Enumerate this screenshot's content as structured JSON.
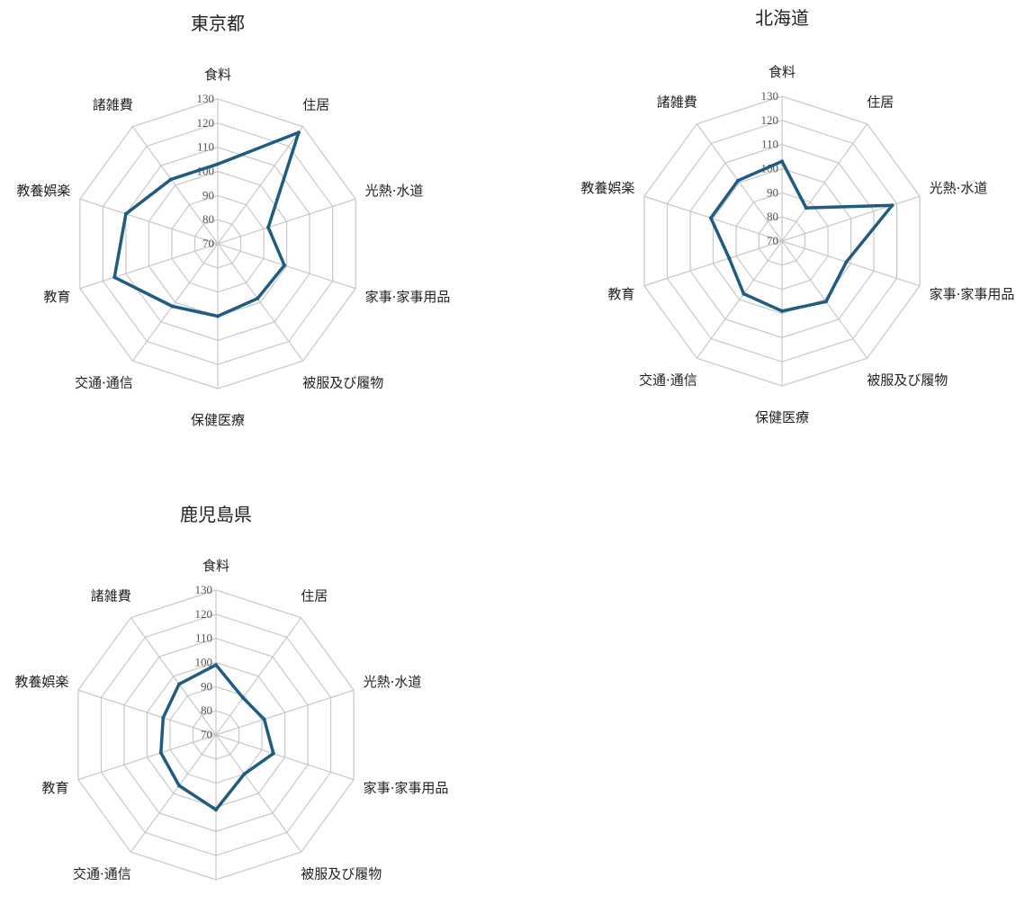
{
  "chart_data": [
    {
      "type": "radar",
      "title": "東京都",
      "categories": [
        "食料",
        "住居",
        "光熱·水道",
        "家事·家事用品",
        "被服及び履物",
        "保健医療",
        "交通·通信",
        "教育",
        "教養娯楽",
        "諸雑費"
      ],
      "values": [
        103,
        127,
        92,
        99,
        98,
        100,
        102,
        115,
        110,
        103
      ],
      "ticks": [
        "70",
        "80",
        "90",
        "100",
        "110",
        "120",
        "130"
      ],
      "rlim": [
        70,
        130
      ],
      "grid": true,
      "color": "#1f5c80"
    },
    {
      "type": "radar",
      "title": "北海道",
      "categories": [
        "食料",
        "住居",
        "光熱·水道",
        "家事·家事用品",
        "被服及び履物",
        "保健医療",
        "交通·通信",
        "教育",
        "教養娯楽",
        "諸雑費"
      ],
      "values": [
        103,
        87,
        118,
        98,
        101,
        99,
        97,
        93,
        101,
        101
      ],
      "ticks": [
        "70",
        "80",
        "90",
        "100",
        "110",
        "120",
        "130"
      ],
      "rlim": [
        70,
        130
      ],
      "grid": true,
      "color": "#1f5c80"
    },
    {
      "type": "radar",
      "title": "鹿児島県",
      "categories": [
        "食料",
        "住居",
        "光熱·水道",
        "家事·家事用品",
        "被服及び履物",
        "保健医療",
        "交通·通信",
        "教育",
        "教養娯楽",
        "諸雑費"
      ],
      "values": [
        99,
        89,
        91,
        95,
        90,
        101,
        96,
        94,
        93,
        96
      ],
      "ticks": [
        "70",
        "80",
        "90",
        "100",
        "110",
        "120",
        "130"
      ],
      "rlim": [
        70,
        130
      ],
      "grid": true,
      "color": "#1f5c80"
    }
  ]
}
